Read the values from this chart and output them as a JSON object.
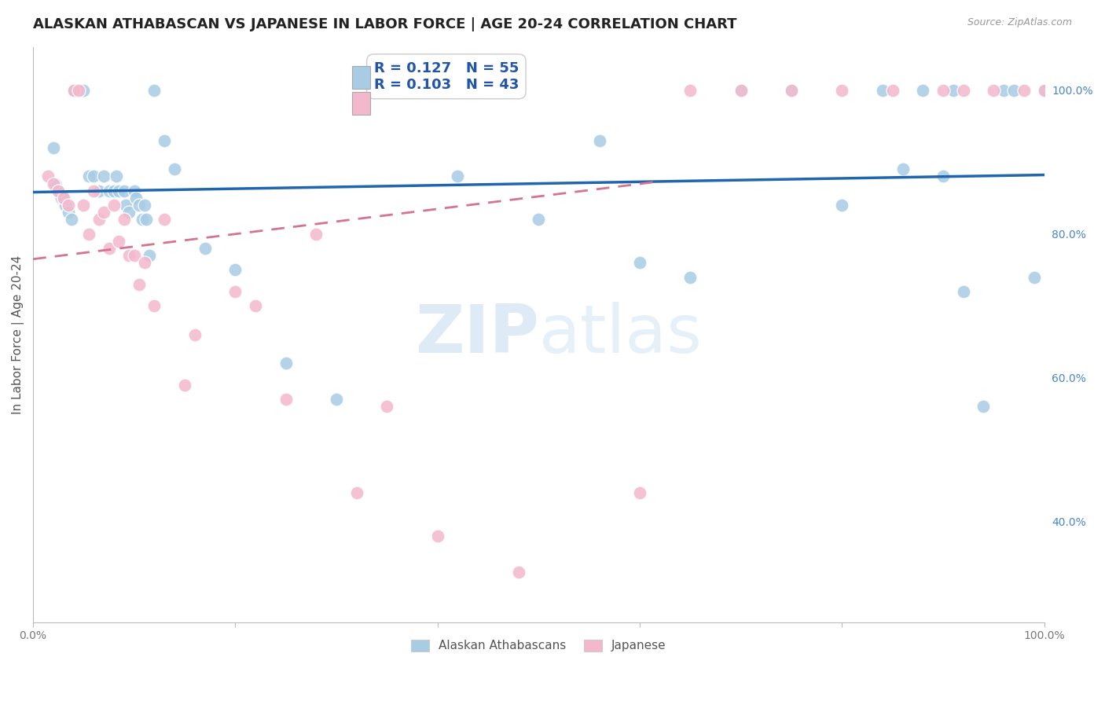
{
  "title": "ALASKAN ATHABASCAN VS JAPANESE IN LABOR FORCE | AGE 20-24 CORRELATION CHART",
  "source": "Source: ZipAtlas.com",
  "ylabel": "In Labor Force | Age 20-24",
  "legend_blue_r": "R = 0.127",
  "legend_blue_n": "N = 55",
  "legend_pink_r": "R = 0.103",
  "legend_pink_n": "N = 43",
  "watermark_zip": "ZIP",
  "watermark_atlas": "atlas",
  "blue_color": "#a8cce4",
  "pink_color": "#f4b8cc",
  "blue_line_color": "#2166ac",
  "pink_line_color": "#d4748f",
  "background_color": "#ffffff",
  "grid_color": "#dddddd",
  "blue_scatter_x": [
    0.02,
    0.04,
    0.04,
    0.05,
    0.055,
    0.06,
    0.065,
    0.07,
    0.075,
    0.08,
    0.082,
    0.085,
    0.09,
    0.092,
    0.095,
    0.1,
    0.102,
    0.105,
    0.108,
    0.11,
    0.112,
    0.115,
    0.022,
    0.025,
    0.028,
    0.03,
    0.032,
    0.035,
    0.038,
    0.12,
    0.13,
    0.14,
    0.17,
    0.2,
    0.25,
    0.3,
    0.42,
    0.5,
    0.56,
    0.6,
    0.65,
    0.7,
    0.75,
    0.8,
    0.84,
    0.86,
    0.88,
    0.9,
    0.91,
    0.92,
    0.94,
    0.96,
    0.97,
    0.99,
    1.0
  ],
  "blue_scatter_y": [
    0.92,
    1.0,
    1.0,
    1.0,
    0.88,
    0.88,
    0.86,
    0.88,
    0.86,
    0.86,
    0.88,
    0.86,
    0.86,
    0.84,
    0.83,
    0.86,
    0.85,
    0.84,
    0.82,
    0.84,
    0.82,
    0.77,
    0.87,
    0.86,
    0.85,
    0.85,
    0.84,
    0.83,
    0.82,
    1.0,
    0.93,
    0.89,
    0.78,
    0.75,
    0.62,
    0.57,
    0.88,
    0.82,
    0.93,
    0.76,
    0.74,
    1.0,
    1.0,
    0.84,
    1.0,
    0.89,
    1.0,
    0.88,
    1.0,
    0.72,
    0.56,
    1.0,
    1.0,
    0.74,
    1.0
  ],
  "pink_scatter_x": [
    0.015,
    0.02,
    0.025,
    0.03,
    0.035,
    0.04,
    0.045,
    0.05,
    0.055,
    0.06,
    0.065,
    0.07,
    0.075,
    0.08,
    0.085,
    0.09,
    0.095,
    0.1,
    0.105,
    0.11,
    0.12,
    0.13,
    0.15,
    0.16,
    0.2,
    0.22,
    0.25,
    0.28,
    0.32,
    0.35,
    0.4,
    0.48,
    0.6,
    0.65,
    0.7,
    0.75,
    0.8,
    0.85,
    0.9,
    0.92,
    0.95,
    0.98,
    1.0
  ],
  "pink_scatter_y": [
    0.88,
    0.87,
    0.86,
    0.85,
    0.84,
    1.0,
    1.0,
    0.84,
    0.8,
    0.86,
    0.82,
    0.83,
    0.78,
    0.84,
    0.79,
    0.82,
    0.77,
    0.77,
    0.73,
    0.76,
    0.7,
    0.82,
    0.59,
    0.66,
    0.72,
    0.7,
    0.57,
    0.8,
    0.44,
    0.56,
    0.38,
    0.33,
    0.44,
    1.0,
    1.0,
    1.0,
    1.0,
    1.0,
    1.0,
    1.0,
    1.0,
    1.0,
    1.0
  ],
  "blue_line_x0": 0.0,
  "blue_line_x1": 1.0,
  "blue_line_y0": 0.858,
  "blue_line_y1": 0.882,
  "pink_line_x0": 0.0,
  "pink_line_x1": 0.62,
  "pink_line_y0": 0.765,
  "pink_line_y1": 0.873,
  "ylim_min": 0.26,
  "ylim_max": 1.06,
  "xlim_min": 0.0,
  "xlim_max": 1.0
}
